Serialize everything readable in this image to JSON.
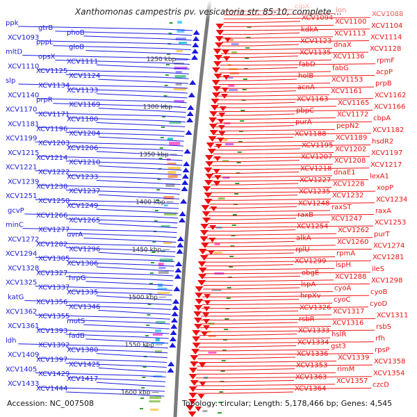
{
  "title": "Xanthomonas campestris pv. vesicatoria str. 85-10, complete ...",
  "colors": {
    "left_strand": "#1a1adf",
    "right_strand": "#ee1111",
    "backbone": "#888888",
    "accent_green": "#2e9e2e"
  },
  "footer": {
    "accession": "Accession: NC_007508",
    "summary": "Topology: circular; Length: 5,178,466 bp; Genes: 4,545"
  },
  "ruler_ticks": [
    "1250 kbp",
    "1300 kbp",
    "1350 kbp",
    "1400 kbp",
    "1450 kbp",
    "1500 kbp",
    "1550 kbp",
    "1600 kbp"
  ],
  "left_genes": [
    "ppk",
    "gtrB",
    "phoB",
    "XCV1093",
    "pppL",
    "gloB",
    "mltD",
    "opsX",
    "XCV1111",
    "XCV1110",
    "XCV1125",
    "XCV1124",
    "slp",
    "XCV1134",
    "XCV1133",
    "XCV1140",
    "prpR",
    "XCV1169",
    "XCV1170",
    "XCV1171",
    "XCV1180",
    "XCV1181",
    "XCV1196",
    "XCV1204",
    "XCV1199",
    "XCV1203",
    "XCV1206",
    "XCV1215",
    "XCV1214",
    "XCV1210",
    "XCV1221",
    "XCV1222",
    "XCV1233",
    "XCV1239",
    "XCV1238",
    "XCV1237",
    "XCV1251",
    "XCV1250",
    "XCV1249",
    "gcvP",
    "XCV1266",
    "XCV1265",
    "minC",
    "XCV1277",
    "uvrA",
    "XCV1272",
    "XCV1282",
    "XCV1296",
    "XCV1294",
    "XCV1305",
    "XCV1306",
    "XCV1328",
    "XCV1327",
    "hrpG",
    "XCV1325",
    "XCV1337",
    "XCV1335",
    "katG",
    "XCV1356",
    "XCV1346",
    "XCV1362",
    "XCV1355",
    "mutS",
    "XCV1361",
    "XCV1393",
    "fadB",
    "ldh",
    "XCV1392",
    "XCV1380",
    "XCV1409",
    "XCV1397",
    "XCV1425",
    "XCV1405",
    "XCV1429",
    "XCV1417",
    "XCV1433",
    "XCV1444"
  ],
  "right_genes": [
    "clpX",
    "lon",
    "XCV1088",
    "XCV1094",
    "XCV1100",
    "XCV1104",
    "kdkA",
    "XCV1113",
    "XCV1114",
    "XCV1123",
    "dnaX",
    "XCV1128",
    "XCV1135",
    "XCV1136",
    "rpmF",
    "fabD",
    "fabG",
    "acpP",
    "holB",
    "XCV1153",
    "prpB",
    "acnA",
    "XCV1161",
    "XCV1162",
    "XCV1163",
    "XCV1165",
    "XCV1166",
    "pbpC",
    "XCV1172",
    "cbpA",
    "purA",
    "pepN2",
    "XCV1182",
    "XCV1188",
    "XCV1189",
    "hsdR2",
    "XCV1195",
    "XCV1202",
    "XCV1197",
    "XCV1207",
    "XCV1208",
    "XCV1217",
    "XCV1218",
    "dnaE1",
    "lexA1",
    "XCV1227",
    "XCV1228",
    "xopP",
    "XCV1235",
    "XCV1232",
    "XCV1234",
    "XCV1248",
    "raxST",
    "raxA",
    "raxB",
    "XCV1247",
    "XCV1253",
    "XCV1254",
    "XCV1262",
    "purT",
    "alkA",
    "XCV1260",
    "XCV1274",
    "rplU",
    "rpmA",
    "XCV1281",
    "XCV1299",
    "ispH",
    "ileS",
    "obgE",
    "XCV1288",
    "XCV1298",
    "lspA",
    "cyoA",
    "cyoB",
    "hrpXv",
    "cyoC",
    "cyoD",
    "XCV1326",
    "XCV1317",
    "XCV1311",
    "rsbR",
    "XCV1316",
    "rsbS",
    "XCV1333",
    "hslR",
    "rfh",
    "XCV1334",
    "gst3",
    "rpsP",
    "XCV1336",
    "XCV1339",
    "XCV1358",
    "XCV1353",
    "rimM",
    "XCV1354",
    "XCV1363",
    "XCV1357",
    "czcD",
    "XCV1364"
  ]
}
